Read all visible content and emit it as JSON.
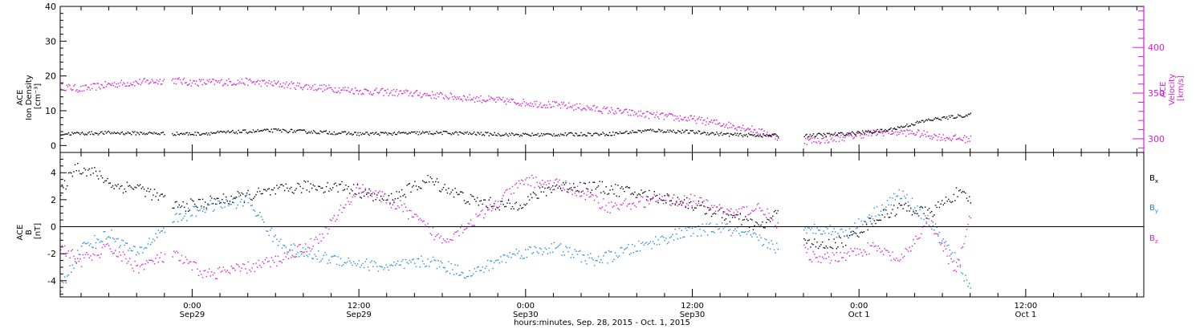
{
  "page": {
    "x_axis_title": "hours:minutes, Sep. 28, 2015 - Oct. 1, 2015"
  },
  "colors": {
    "black": "#000000",
    "blue": "#1e88e5",
    "magenta": "#d81bd8",
    "axis": "#000000"
  },
  "chart_data": [
    {
      "type": "scatter",
      "panel": "top",
      "ylabel_left": [
        "ACE",
        "Ion Density",
        "[cm⁻³]"
      ],
      "ylabel_right": [
        "ACE",
        "Velocity",
        "[km/s]"
      ],
      "x": {
        "start": "2015-09-28 14:30",
        "end": "2015-10-01 20:30",
        "tick_labels": [
          [
            "0:00",
            "Sep29"
          ],
          [
            "12:00",
            "Sep29"
          ],
          [
            "0:00",
            "Sep30"
          ],
          [
            "12:00",
            "Sep30"
          ],
          [
            "0:00",
            "Oct 1"
          ],
          [
            "12:00",
            "Oct 1"
          ]
        ]
      },
      "y_left": {
        "ylim": [
          -2,
          40
        ],
        "ticks": [
          0,
          10,
          20,
          30,
          40
        ]
      },
      "y_right": {
        "ylim": [
          285,
          445
        ],
        "ticks": [
          300,
          350,
          400
        ]
      },
      "data_gaps": [
        [
          "2015-09-28 22:00",
          "2015-09-28 22:30"
        ],
        [
          "2015-09-30 18:10",
          "2015-09-30 20:00"
        ]
      ],
      "series": [
        {
          "axis": "left",
          "color": "black",
          "x": [
            "2015-09-28 14:30",
            "2015-09-28 18:00",
            "2015-09-29 00:00",
            "2015-09-29 06:00",
            "2015-09-29 12:00",
            "2015-09-29 18:00",
            "2015-09-30 00:00",
            "2015-09-30 06:00",
            "2015-09-30 09:00",
            "2015-09-30 12:00",
            "2015-09-30 15:00",
            "2015-09-30 18:00",
            "2015-09-30 20:00",
            "2015-09-30 23:00",
            "2015-10-01 02:00",
            "2015-10-01 05:00",
            "2015-10-01 08:00"
          ],
          "y": [
            3.5,
            3.8,
            3.5,
            4.5,
            3.5,
            3.8,
            3.2,
            3.5,
            4.5,
            4.0,
            3.2,
            3.0,
            3.0,
            3.5,
            4.5,
            7.5,
            9.0
          ]
        },
        {
          "axis": "right",
          "color": "magenta",
          "x": [
            "2015-09-28 14:30",
            "2015-09-28 16:00",
            "2015-09-28 18:00",
            "2015-09-28 22:30",
            "2015-09-29 00:00",
            "2015-09-29 04:00",
            "2015-09-29 08:00",
            "2015-09-29 12:00",
            "2015-09-29 16:00",
            "2015-09-29 20:00",
            "2015-09-30 00:00",
            "2015-09-30 04:00",
            "2015-09-30 08:00",
            "2015-09-30 12:00",
            "2015-09-30 16:00",
            "2015-09-30 18:00",
            "2015-09-30 20:00",
            "2015-09-30 22:00",
            "2015-10-01 00:00",
            "2015-10-01 02:00",
            "2015-10-01 04:00",
            "2015-10-01 06:00",
            "2015-10-01 08:00"
          ],
          "y": [
            358,
            355,
            360,
            365,
            362,
            363,
            358,
            353,
            350,
            345,
            340,
            335,
            328,
            322,
            312,
            303,
            298,
            300,
            305,
            308,
            307,
            302,
            300
          ]
        }
      ]
    },
    {
      "type": "scatter",
      "panel": "bottom",
      "ylabel_left": [
        "ACE",
        "B",
        "[nT]"
      ],
      "ylim": [
        -5.2,
        5.5
      ],
      "ticks": [
        -4,
        -2,
        0,
        2,
        4
      ],
      "zero_line": true,
      "legend": [
        {
          "label": "B",
          "sub": "x",
          "color": "black"
        },
        {
          "label": "B",
          "sub": "y",
          "color": "blue"
        },
        {
          "label": "B",
          "sub": "z",
          "color": "magenta"
        }
      ],
      "series": [
        {
          "name": "Bx",
          "color": "black",
          "x": [
            "2015-09-28 14:30",
            "2015-09-28 15:30",
            "2015-09-28 17:00",
            "2015-09-28 18:30",
            "2015-09-28 20:00",
            "2015-09-28 23:00",
            "2015-09-29 02:00",
            "2015-09-29 05:00",
            "2015-09-29 08:00",
            "2015-09-29 11:00",
            "2015-09-29 14:00",
            "2015-09-29 17:00",
            "2015-09-29 20:00",
            "2015-09-29 23:00",
            "2015-09-30 02:00",
            "2015-09-30 05:00",
            "2015-09-30 08:00",
            "2015-09-30 11:00",
            "2015-09-30 14:00",
            "2015-09-30 17:00",
            "2015-09-30 18:00",
            "2015-09-30 21:00",
            "2015-09-30 23:00",
            "2015-10-01 01:00",
            "2015-10-01 03:00",
            "2015-10-01 05:00",
            "2015-10-01 07:00",
            "2015-10-01 08:00"
          ],
          "y": [
            2.5,
            4.5,
            4.0,
            3.0,
            3.0,
            1.5,
            2.0,
            2.5,
            3.0,
            3.0,
            2.0,
            3.5,
            2.0,
            1.5,
            3.0,
            3.0,
            2.5,
            2.0,
            1.0,
            0.0,
            1.0,
            -1.5,
            -1.0,
            0.5,
            1.5,
            1.0,
            2.5,
            2.0
          ]
        },
        {
          "name": "By",
          "color": "blue",
          "x": [
            "2015-09-28 14:30",
            "2015-09-28 16:00",
            "2015-09-28 18:00",
            "2015-09-28 20:00",
            "2015-09-28 22:30",
            "2015-09-29 01:00",
            "2015-09-29 04:00",
            "2015-09-29 06:00",
            "2015-09-29 08:00",
            "2015-09-29 11:00",
            "2015-09-29 14:00",
            "2015-09-29 17:00",
            "2015-09-29 20:00",
            "2015-09-29 23:00",
            "2015-09-30 02:00",
            "2015-09-30 05:00",
            "2015-09-30 08:00",
            "2015-09-30 11:00",
            "2015-09-30 14:00",
            "2015-09-30 17:00",
            "2015-09-30 18:00",
            "2015-09-30 21:00",
            "2015-09-30 23:00",
            "2015-10-01 01:00",
            "2015-10-01 03:00",
            "2015-10-01 05:00",
            "2015-10-01 07:00",
            "2015-10-01 08:00"
          ],
          "y": [
            -4.5,
            -1.5,
            -0.5,
            -2.0,
            0.5,
            1.5,
            2.0,
            -1.0,
            -2.0,
            -2.5,
            -3.0,
            -2.5,
            -3.5,
            -2.0,
            -1.5,
            -2.5,
            -1.5,
            -0.5,
            0.0,
            -1.0,
            -1.5,
            0.0,
            -0.5,
            1.0,
            2.5,
            0.5,
            -2.5,
            -4.5
          ]
        },
        {
          "name": "Bz",
          "color": "magenta",
          "x": [
            "2015-09-28 14:30",
            "2015-09-28 16:00",
            "2015-09-28 18:00",
            "2015-09-28 20:00",
            "2015-09-28 22:30",
            "2015-09-29 01:00",
            "2015-09-29 04:00",
            "2015-09-29 06:00",
            "2015-09-29 09:00",
            "2015-09-29 12:00",
            "2015-09-29 15:00",
            "2015-09-29 18:00",
            "2015-09-29 21:00",
            "2015-09-30 00:00",
            "2015-09-30 03:00",
            "2015-09-30 06:00",
            "2015-09-30 09:00",
            "2015-09-30 12:00",
            "2015-09-30 15:00",
            "2015-09-30 17:00",
            "2015-09-30 18:00",
            "2015-09-30 21:00",
            "2015-09-30 23:00",
            "2015-10-01 01:00",
            "2015-10-01 03:00",
            "2015-10-01 05:00",
            "2015-10-01 07:00",
            "2015-10-01 08:00"
          ],
          "y": [
            -1.5,
            -2.5,
            -1.5,
            -3.0,
            -2.0,
            -3.5,
            -3.0,
            -2.5,
            -1.0,
            3.0,
            1.5,
            -1.0,
            1.0,
            3.5,
            3.0,
            1.5,
            2.0,
            2.0,
            1.0,
            1.5,
            0.0,
            -2.5,
            -2.0,
            -1.5,
            -2.5,
            0.5,
            -3.5,
            1.0
          ]
        }
      ]
    }
  ]
}
